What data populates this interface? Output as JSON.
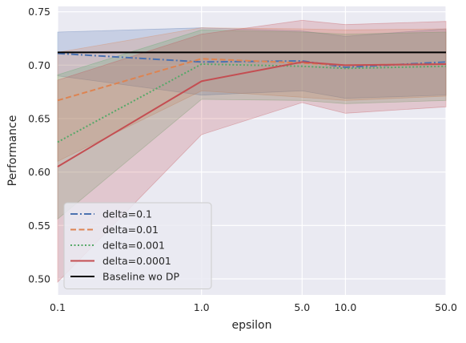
{
  "chart_data": {
    "type": "line",
    "xlabel": "epsilon",
    "ylabel": "Performance",
    "x_scale": "log",
    "xlim": [
      0.1,
      50.0
    ],
    "ylim": [
      0.485,
      0.755
    ],
    "x_ticks": [
      {
        "value": 0.1,
        "label": "0.1"
      },
      {
        "value": 1.0,
        "label": "1.0"
      },
      {
        "value": 5.0,
        "label": "5.0"
      },
      {
        "value": 10.0,
        "label": "10.0"
      },
      {
        "value": 50.0,
        "label": "50.0"
      }
    ],
    "y_ticks": [
      {
        "value": 0.5,
        "label": "0.50"
      },
      {
        "value": 0.55,
        "label": "0.55"
      },
      {
        "value": 0.6,
        "label": "0.60"
      },
      {
        "value": 0.65,
        "label": "0.65"
      },
      {
        "value": 0.7,
        "label": "0.70"
      },
      {
        "value": 0.75,
        "label": "0.75"
      }
    ],
    "x": [
      0.1,
      1.0,
      5.0,
      10.0,
      50.0
    ],
    "grid": true,
    "legend_position": "lower-left",
    "series": [
      {
        "name": "delta=0.1",
        "color": "#4c72b0",
        "dash": "dashdot",
        "values": [
          0.711,
          0.703,
          0.704,
          0.698,
          0.703
        ],
        "lower": [
          0.69,
          0.672,
          0.676,
          0.669,
          0.672
        ],
        "upper": [
          0.731,
          0.735,
          0.732,
          0.727,
          0.734
        ]
      },
      {
        "name": "delta=0.01",
        "color": "#dd8452",
        "dash": "dashed",
        "values": [
          0.667,
          0.706,
          0.702,
          0.7,
          0.701
        ],
        "lower": [
          0.61,
          0.676,
          0.67,
          0.667,
          0.671
        ],
        "upper": [
          0.712,
          0.735,
          0.734,
          0.733,
          0.734
        ]
      },
      {
        "name": "delta=0.001",
        "color": "#55a868",
        "dash": "dotted",
        "values": [
          0.628,
          0.701,
          0.699,
          0.697,
          0.699
        ],
        "lower": [
          0.556,
          0.668,
          0.667,
          0.664,
          0.667
        ],
        "upper": [
          0.691,
          0.733,
          0.731,
          0.729,
          0.731
        ]
      },
      {
        "name": "delta=0.0001",
        "color": "#c44e52",
        "dash": "solid",
        "values": [
          0.605,
          0.685,
          0.703,
          0.7,
          0.701
        ],
        "lower": [
          0.497,
          0.635,
          0.665,
          0.655,
          0.661
        ],
        "upper": [
          0.686,
          0.729,
          0.742,
          0.738,
          0.741
        ]
      }
    ],
    "baseline": {
      "name": "Baseline wo DP",
      "color": "#000000",
      "value": 0.712
    }
  }
}
